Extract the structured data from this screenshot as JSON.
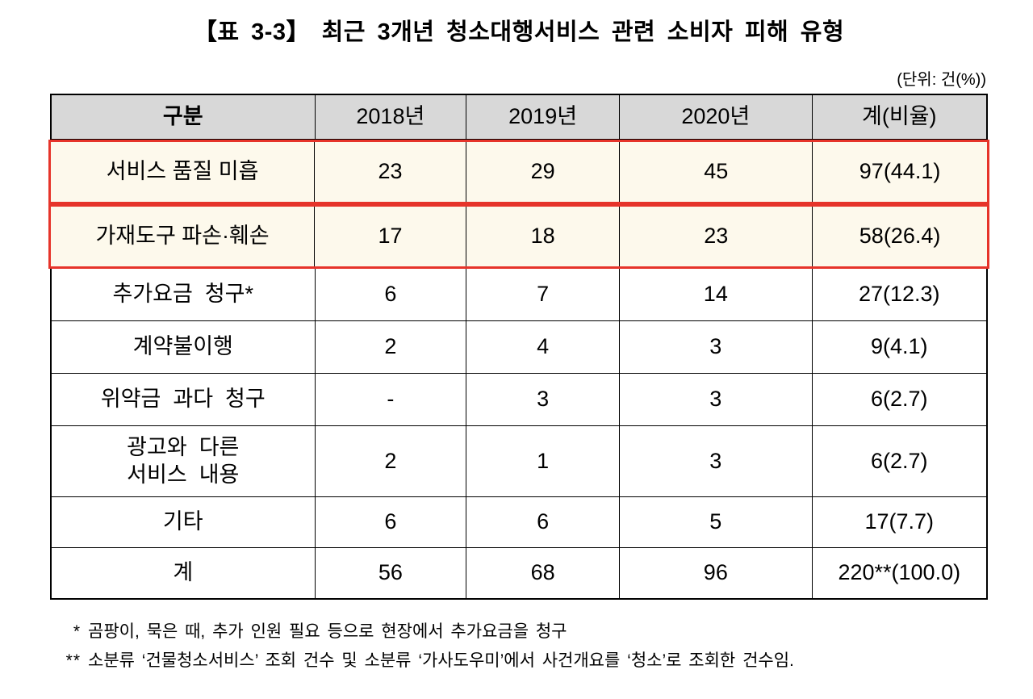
{
  "title": "【표 3-3】 최근 3개년 청소대행서비스 관련 소비자 피해 유형",
  "unit_note": "(단위: 건(%))",
  "table": {
    "headers": [
      "구분",
      "2018년",
      "2019년",
      "2020년",
      "계(비율)"
    ],
    "rows": [
      {
        "label": "서비스 품질 미흡",
        "values": [
          "23",
          "29",
          "45",
          "97(44.1)"
        ]
      },
      {
        "label": "가재도구 파손·훼손",
        "values": [
          "17",
          "18",
          "23",
          "58(26.4)"
        ]
      },
      {
        "label": "추가요금  청구*",
        "values": [
          "6",
          "7",
          "14",
          "27(12.3)"
        ]
      },
      {
        "label": "계약불이행",
        "values": [
          "2",
          "4",
          "3",
          "9(4.1)"
        ]
      },
      {
        "label": "위약금  과다  청구",
        "values": [
          "-",
          "3",
          "3",
          "6(2.7)"
        ]
      },
      {
        "label": "광고와  다른\n서비스  내용",
        "values": [
          "2",
          "1",
          "3",
          "6(2.7)"
        ]
      },
      {
        "label": "기타",
        "values": [
          "6",
          "6",
          "5",
          "17(7.7)"
        ]
      },
      {
        "label": "계",
        "values": [
          "56",
          "68",
          "96",
          "220**(100.0)"
        ]
      }
    ]
  },
  "footnotes": [
    {
      "marker": "*",
      "text": "곰팡이, 묵은 때, 추가 인원 필요 등으로 현장에서 추가요금을 청구"
    },
    {
      "marker": "**",
      "text": "소분류 ‘건물청소서비스’ 조회 건수 및 소분류 ‘가사도우미’에서 사건개요를 ‘청소’로 조회한 건수임."
    }
  ],
  "colors": {
    "header_bg": "#d8d8d8",
    "highlight_bg": "#fdf9ec",
    "highlight_border": "#e6342a",
    "table_border": "#000000"
  }
}
